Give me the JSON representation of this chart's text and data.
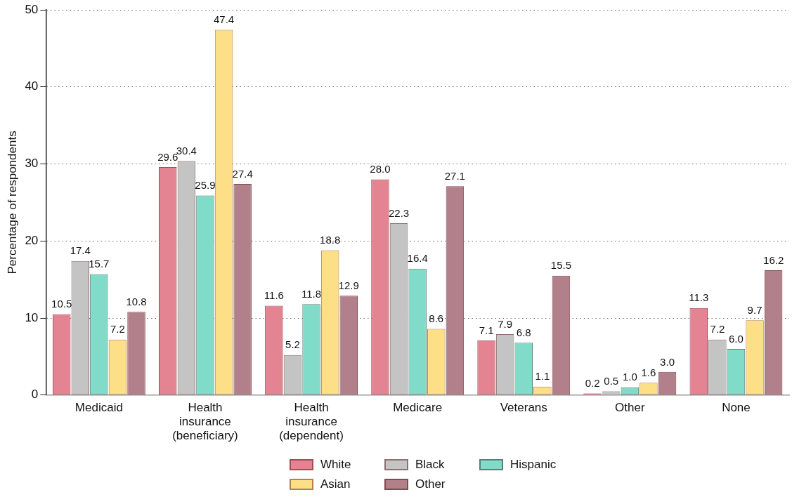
{
  "chart_data": {
    "type": "bar",
    "ylabel": "Percentage of respondents",
    "categories": [
      "Medicaid",
      "Health insurance (beneficiary)",
      "Health insurance (dependent)",
      "Medicare",
      "Veterans",
      "Other",
      "None"
    ],
    "series": [
      {
        "name": "White",
        "color": "#e48391",
        "values": [
          10.5,
          29.6,
          11.6,
          28.0,
          7.1,
          0.2,
          11.3
        ],
        "value_labels": [
          "10.5",
          "29.6",
          "11.6",
          "28.0",
          "7.1",
          "0.2",
          "11.3"
        ]
      },
      {
        "name": "Black",
        "color": "#c4c4c4",
        "values": [
          17.4,
          30.4,
          5.2,
          22.3,
          7.9,
          0.5,
          7.2
        ],
        "value_labels": [
          "17.4",
          "30.4",
          "5.2",
          "22.3",
          "7.9",
          "0.5",
          "7.2"
        ]
      },
      {
        "name": "Hispanic",
        "color": "#80dcc8",
        "values": [
          15.7,
          25.9,
          11.8,
          16.4,
          6.8,
          1.0,
          6.0
        ],
        "value_labels": [
          "15.7",
          "25.9",
          "11.8",
          "16.4",
          "6.8",
          "1.0",
          "6.0"
        ]
      },
      {
        "name": "Asian",
        "color": "#fcdf86",
        "values": [
          7.2,
          47.4,
          18.8,
          8.6,
          1.1,
          1.6,
          9.7
        ],
        "value_labels": [
          "7.2",
          "47.4",
          "18.8",
          "8.6",
          "1.1",
          "1.6",
          "9.7"
        ]
      },
      {
        "name": "Other",
        "color": "#b2808a",
        "values": [
          10.8,
          27.4,
          12.9,
          27.1,
          15.5,
          3.0,
          16.2
        ],
        "value_labels": [
          "10.8",
          "27.4",
          "12.9",
          "27.1",
          "15.5",
          "3.0",
          "16.2"
        ]
      }
    ],
    "ylim": [
      0,
      50
    ],
    "yticks": [
      0,
      10,
      20,
      30,
      40,
      50
    ],
    "grid": "y",
    "legend": "bottom"
  }
}
